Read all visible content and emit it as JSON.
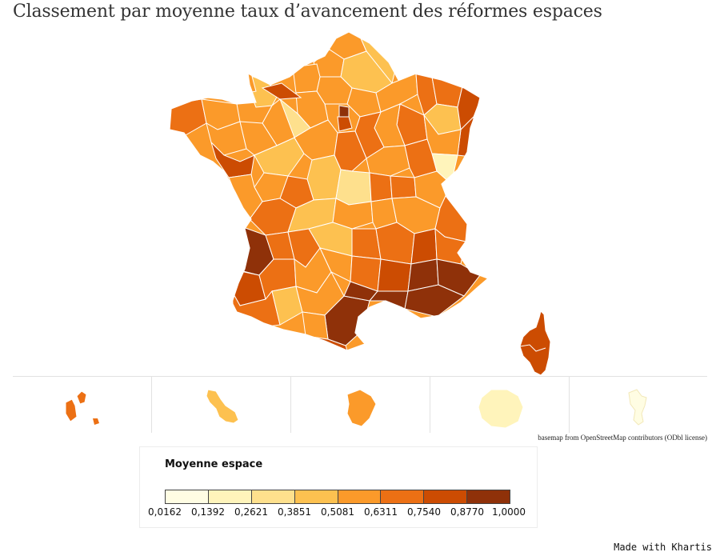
{
  "title": "Classement par moyenne taux d’avancement des réformes espaces",
  "credit": "basemap from OpenStreetMap contributors (ODbl license)",
  "made_with": "Made with Khartis",
  "legend": {
    "title": "Moyenne espace",
    "ticks": [
      "0,0162",
      "0,1392",
      "0,2621",
      "0,3851",
      "0,5081",
      "0,6311",
      "0,7540",
      "0,8770",
      "1,0000"
    ],
    "colors": [
      "#fffde3",
      "#fff4bb",
      "#fee08d",
      "#fdc150",
      "#fb9a2a",
      "#ec7014",
      "#cc4c02",
      "#8f3109"
    ]
  },
  "map": {
    "basemap": "France métropolitaine et DROM",
    "insets": [
      "Guadeloupe",
      "Martinique",
      "Guyane",
      "La Réunion",
      "Mayotte"
    ]
  }
}
